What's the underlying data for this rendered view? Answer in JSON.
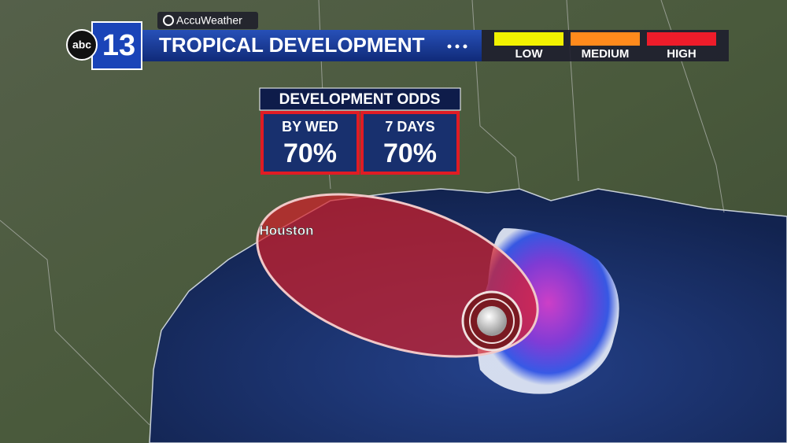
{
  "header": {
    "network": "abc",
    "station": "13",
    "brand": "AccuWeather",
    "title": "TROPICAL DEVELOPMENT"
  },
  "legend": [
    {
      "label": "LOW",
      "color": "#f2f200"
    },
    {
      "label": "MEDIUM",
      "color": "#ff8a1c"
    },
    {
      "label": "HIGH",
      "color": "#ee1c2a"
    }
  ],
  "odds": {
    "title": "DEVELOPMENT ODDS",
    "items": [
      {
        "label": "BY WED",
        "value": "70%"
      },
      {
        "label": "7 DAYS",
        "value": "70%"
      }
    ]
  },
  "map": {
    "city": "Houston"
  }
}
